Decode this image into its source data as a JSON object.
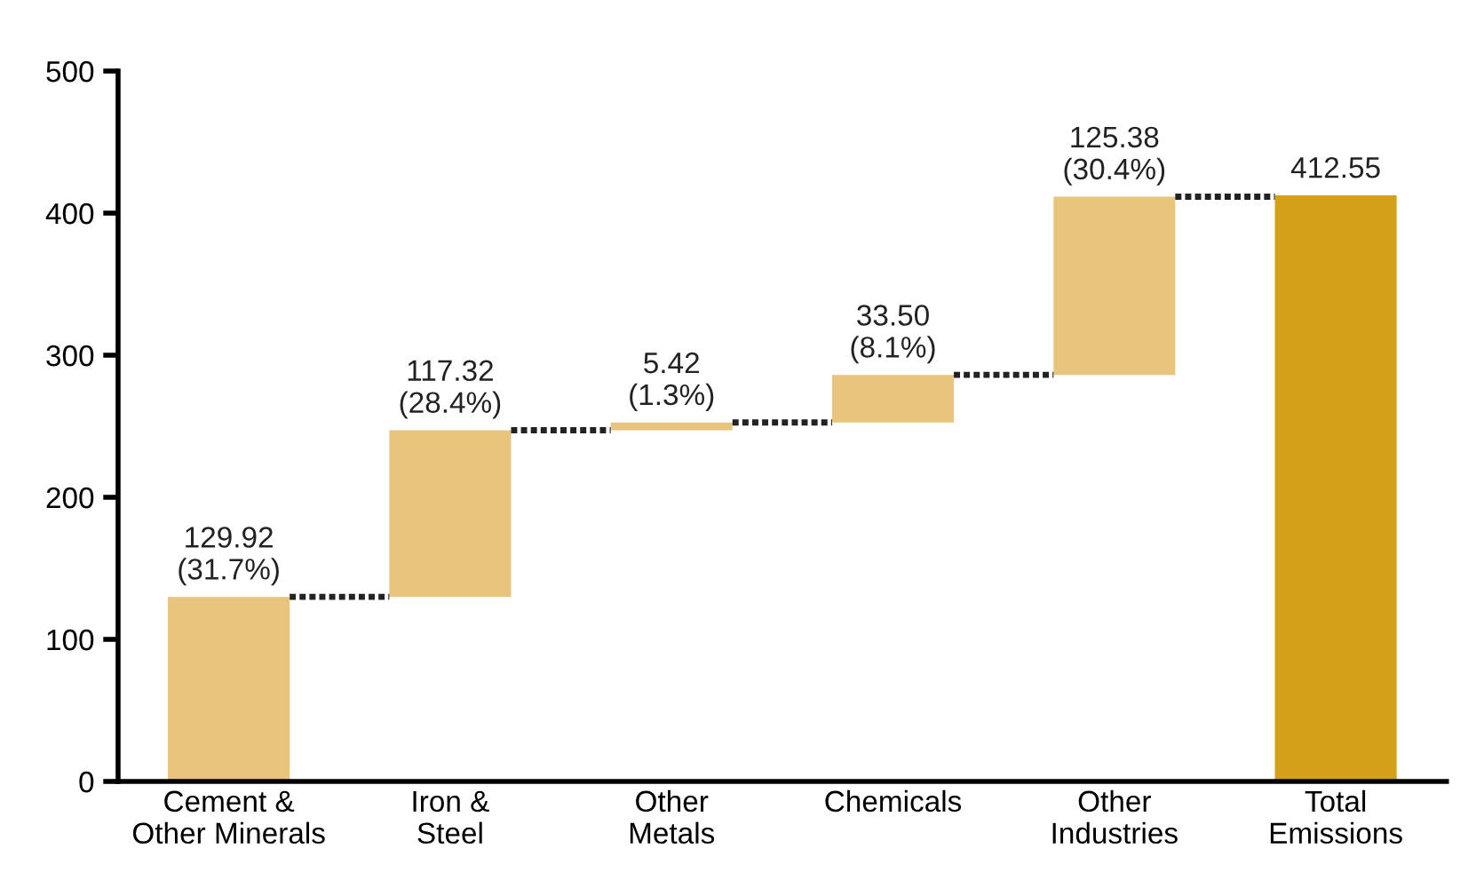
{
  "chart_data": {
    "type": "bar",
    "categories": [
      "Cement &\nOther Minerals",
      "Iron &\nSteel",
      "Other\nMetals",
      "Chemicals",
      "Other\nIndustries",
      "Total\nEmissions"
    ],
    "values": [
      129.92,
      117.32,
      5.42,
      33.5,
      125.38,
      412.55
    ],
    "base": [
      0,
      129.92,
      247.24,
      252.66,
      286.16,
      0
    ],
    "colors": [
      "#e8c47c",
      "#e8c47c",
      "#e8c47c",
      "#e8c47c",
      "#e8c47c",
      "#d4a017"
    ],
    "value_labels": [
      "129.92\n(31.7%)",
      "117.32\n(28.4%)",
      "5.42\n(1.3%)",
      "33.50\n(8.1%)",
      "125.38\n(30.4%)",
      "412.55"
    ],
    "ylim": [
      0,
      500
    ],
    "yticks": [
      0,
      100,
      200,
      300,
      400,
      500
    ],
    "grid": false,
    "legend": false
  }
}
